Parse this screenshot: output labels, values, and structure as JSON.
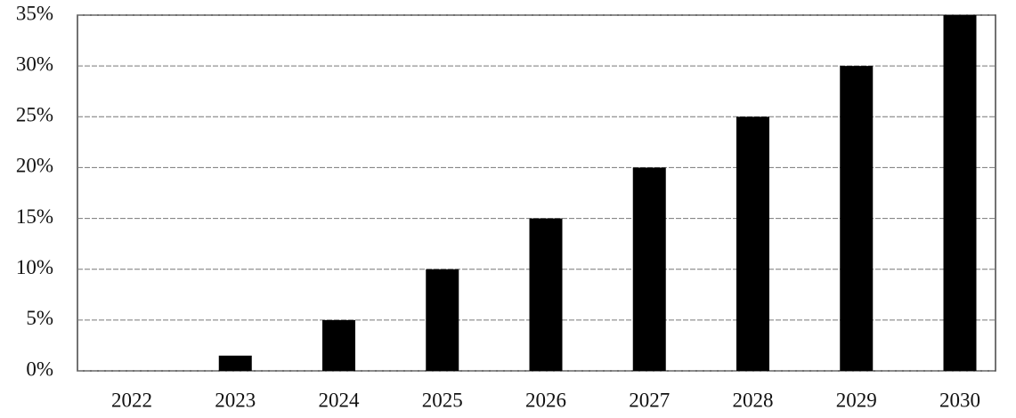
{
  "chart_data": {
    "type": "bar",
    "categories": [
      "2022",
      "2023",
      "2024",
      "2025",
      "2026",
      "2027",
      "2028",
      "2029",
      "2030"
    ],
    "values": [
      0,
      1.5,
      5,
      10,
      15,
      20,
      25,
      30,
      35
    ],
    "color": "#000000",
    "ylim": [
      0,
      35
    ],
    "yticks": [
      {
        "value": 0,
        "label": "0%"
      },
      {
        "value": 5,
        "label": "5%"
      },
      {
        "value": 10,
        "label": "10%"
      },
      {
        "value": 15,
        "label": "15%"
      },
      {
        "value": 20,
        "label": "20%"
      },
      {
        "value": 25,
        "label": "25%"
      },
      {
        "value": 30,
        "label": "30%"
      },
      {
        "value": 35,
        "label": "35%"
      }
    ],
    "grid": true
  }
}
